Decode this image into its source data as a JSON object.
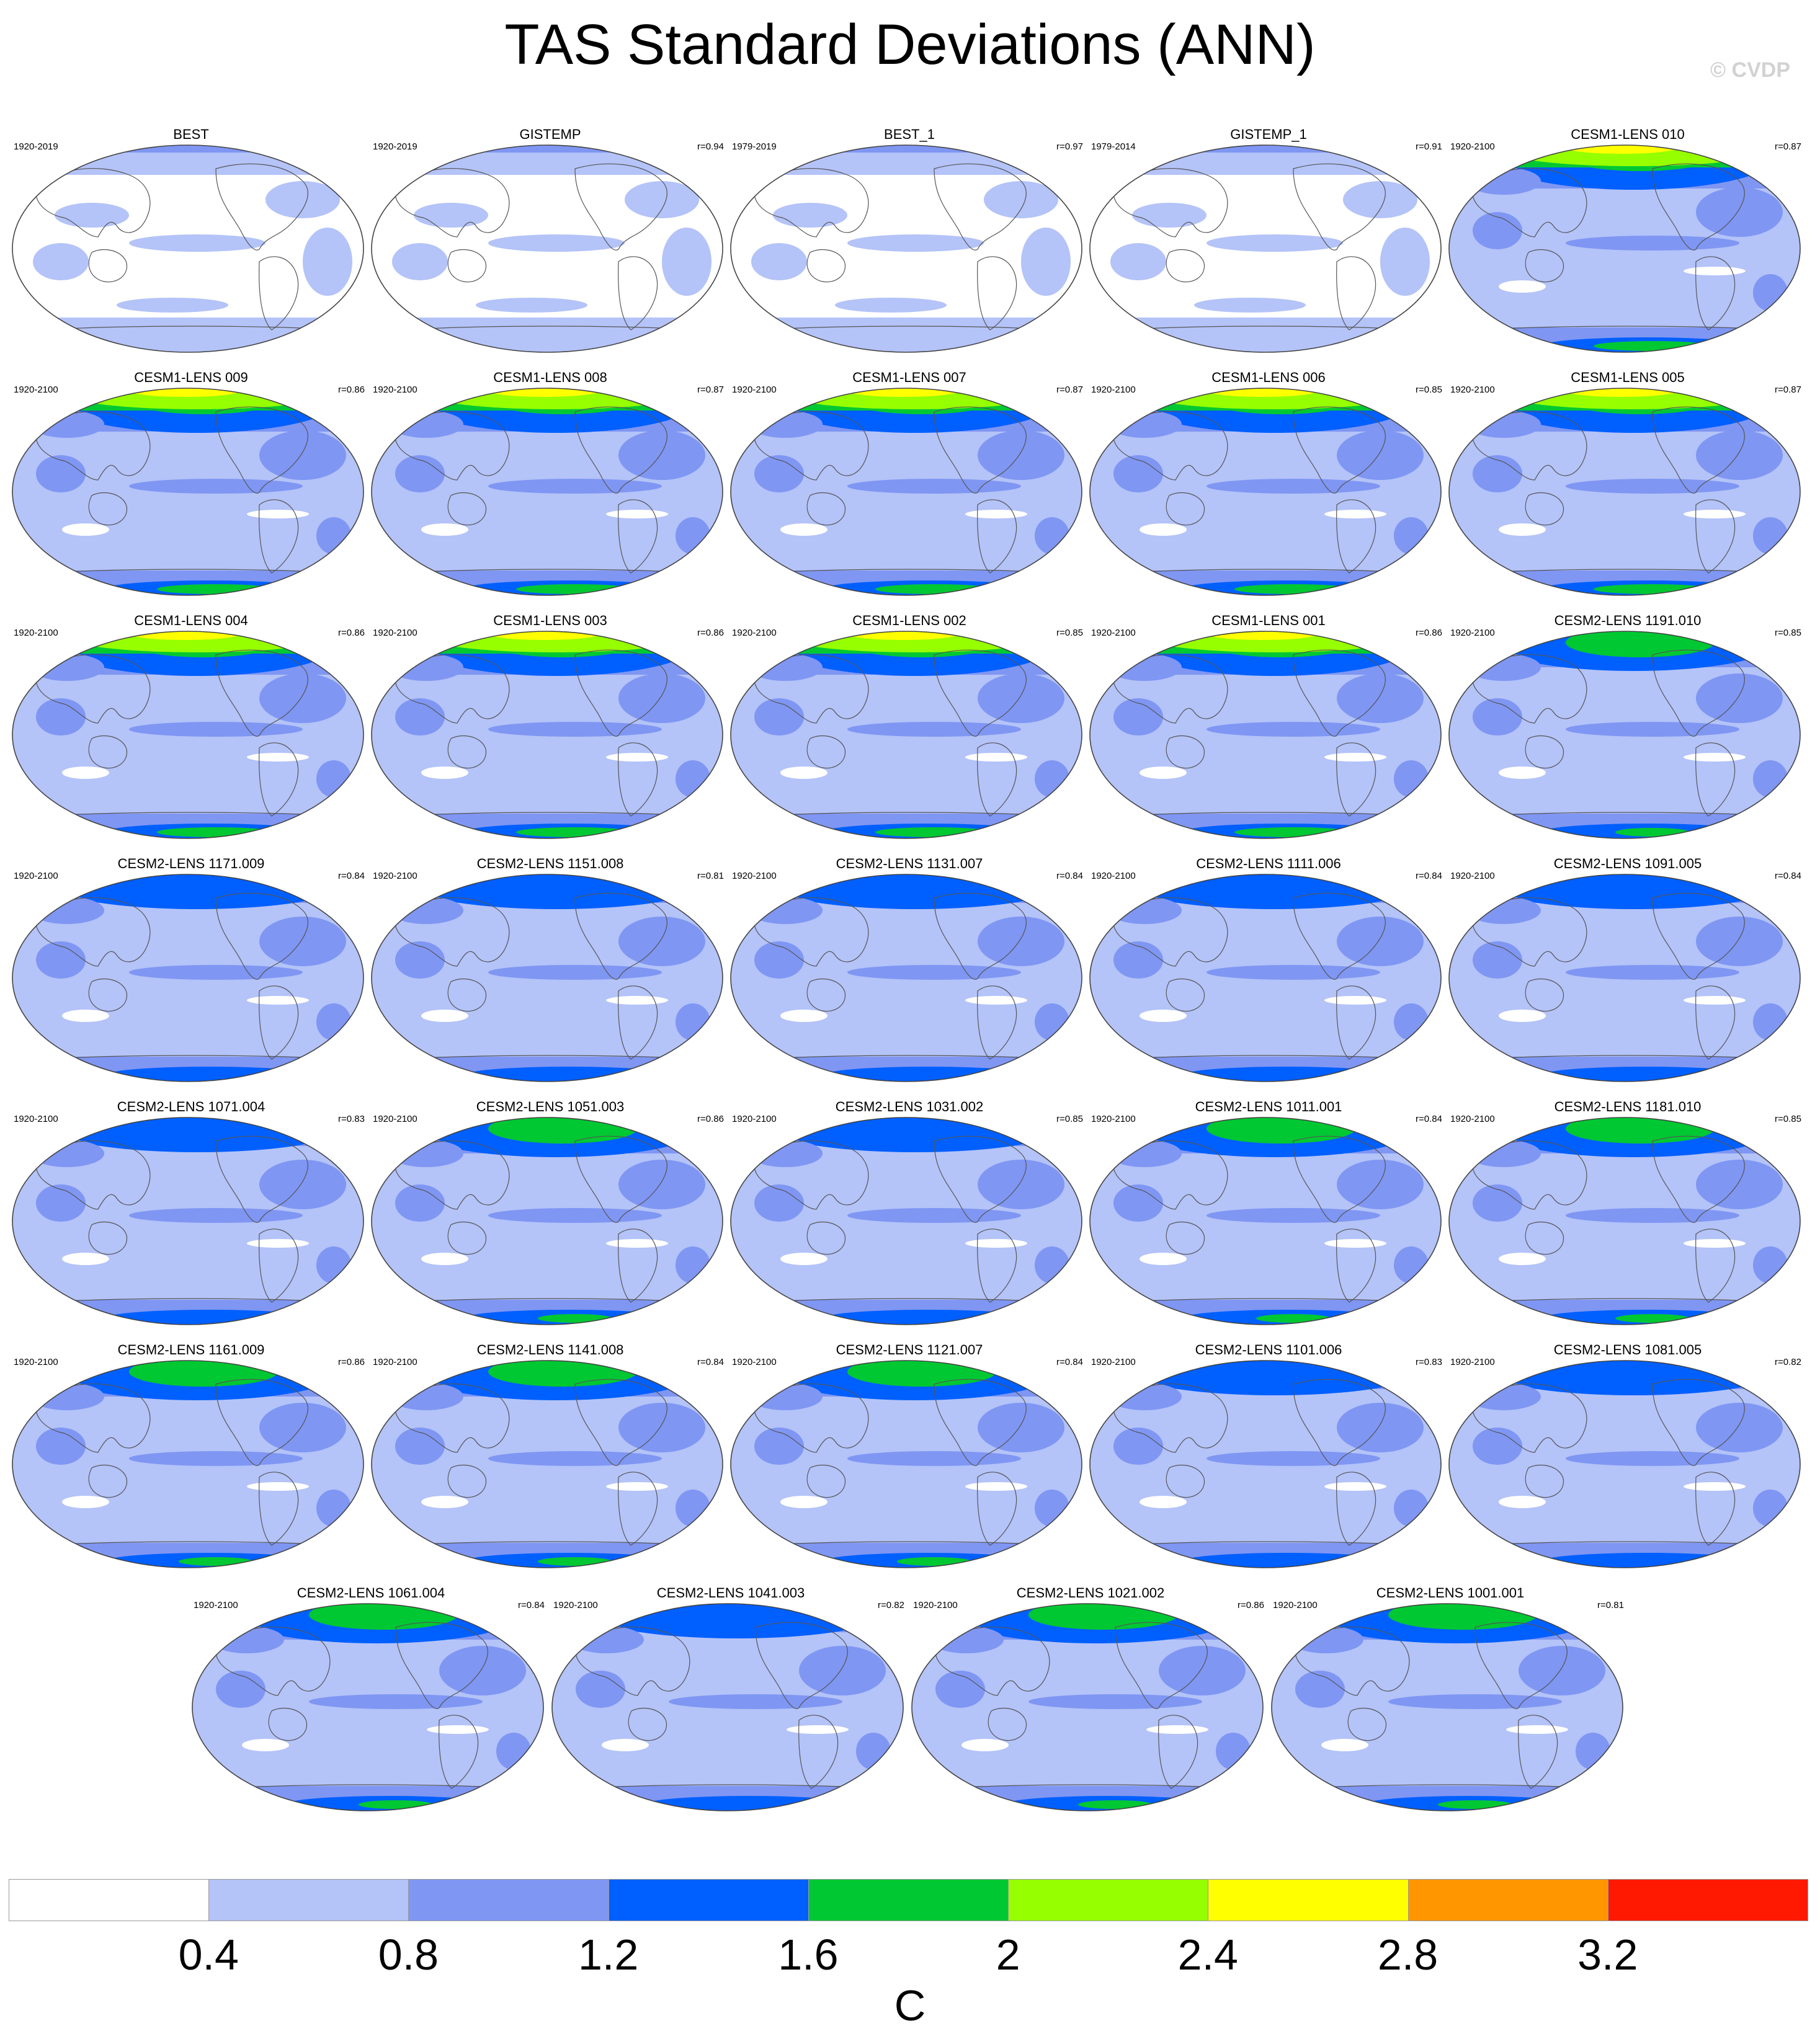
{
  "title": "TAS Standard Deviations (ANN)",
  "watermark": "© CVDP",
  "panels": [
    {
      "name": "BEST",
      "period": "1920-2019",
      "r": "",
      "amp": 0
    },
    {
      "name": "GISTEMP",
      "period": "1920-2019",
      "r": "r=0.94",
      "amp": 0
    },
    {
      "name": "BEST_1",
      "period": "1979-2019",
      "r": "r=0.97",
      "amp": 0
    },
    {
      "name": "GISTEMP_1",
      "period": "1979-2014",
      "r": "r=0.91",
      "amp": 0
    },
    {
      "name": "CESM1-LENS 010",
      "period": "1920-2100",
      "r": "r=0.87",
      "amp": 3
    },
    {
      "name": "CESM1-LENS 009",
      "period": "1920-2100",
      "r": "r=0.86",
      "amp": 3
    },
    {
      "name": "CESM1-LENS 008",
      "period": "1920-2100",
      "r": "r=0.87",
      "amp": 3
    },
    {
      "name": "CESM1-LENS 007",
      "period": "1920-2100",
      "r": "r=0.87",
      "amp": 3
    },
    {
      "name": "CESM1-LENS 006",
      "period": "1920-2100",
      "r": "r=0.85",
      "amp": 3
    },
    {
      "name": "CESM1-LENS 005",
      "period": "1920-2100",
      "r": "r=0.87",
      "amp": 3
    },
    {
      "name": "CESM1-LENS 004",
      "period": "1920-2100",
      "r": "r=0.86",
      "amp": 3
    },
    {
      "name": "CESM1-LENS 003",
      "period": "1920-2100",
      "r": "r=0.86",
      "amp": 3
    },
    {
      "name": "CESM1-LENS 002",
      "period": "1920-2100",
      "r": "r=0.85",
      "amp": 3
    },
    {
      "name": "CESM1-LENS 001",
      "period": "1920-2100",
      "r": "r=0.86",
      "amp": 3
    },
    {
      "name": "CESM2-LENS 1191.010",
      "period": "1920-2100",
      "r": "r=0.85",
      "amp": 2
    },
    {
      "name": "CESM2-LENS 1171.009",
      "period": "1920-2100",
      "r": "r=0.84",
      "amp": 1
    },
    {
      "name": "CESM2-LENS 1151.008",
      "period": "1920-2100",
      "r": "r=0.81",
      "amp": 1
    },
    {
      "name": "CESM2-LENS 1131.007",
      "period": "1920-2100",
      "r": "r=0.84",
      "amp": 1
    },
    {
      "name": "CESM2-LENS 1111.006",
      "period": "1920-2100",
      "r": "r=0.84",
      "amp": 1
    },
    {
      "name": "CESM2-LENS 1091.005",
      "period": "1920-2100",
      "r": "r=0.84",
      "amp": 1
    },
    {
      "name": "CESM2-LENS 1071.004",
      "period": "1920-2100",
      "r": "r=0.83",
      "amp": 1
    },
    {
      "name": "CESM2-LENS 1051.003",
      "period": "1920-2100",
      "r": "r=0.86",
      "amp": 2
    },
    {
      "name": "CESM2-LENS 1031.002",
      "period": "1920-2100",
      "r": "r=0.85",
      "amp": 1
    },
    {
      "name": "CESM2-LENS 1011.001",
      "period": "1920-2100",
      "r": "r=0.84",
      "amp": 2
    },
    {
      "name": "CESM2-LENS 1181.010",
      "period": "1920-2100",
      "r": "r=0.85",
      "amp": 2
    },
    {
      "name": "CESM2-LENS 1161.009",
      "period": "1920-2100",
      "r": "r=0.86",
      "amp": 2
    },
    {
      "name": "CESM2-LENS 1141.008",
      "period": "1920-2100",
      "r": "r=0.84",
      "amp": 2
    },
    {
      "name": "CESM2-LENS 1121.007",
      "period": "1920-2100",
      "r": "r=0.84",
      "amp": 2
    },
    {
      "name": "CESM2-LENS 1101.006",
      "period": "1920-2100",
      "r": "r=0.83",
      "amp": 1
    },
    {
      "name": "CESM2-LENS 1081.005",
      "period": "1920-2100",
      "r": "r=0.82",
      "amp": 1
    },
    {
      "name": "CESM2-LENS 1061.004",
      "period": "1920-2100",
      "r": "r=0.84",
      "amp": 2
    },
    {
      "name": "CESM2-LENS 1041.003",
      "period": "1920-2100",
      "r": "r=0.82",
      "amp": 1
    },
    {
      "name": "CESM2-LENS 1021.002",
      "period": "1920-2100",
      "r": "r=0.86",
      "amp": 2
    },
    {
      "name": "CESM2-LENS 1001.001",
      "period": "1920-2100",
      "r": "r=0.81",
      "amp": 2
    }
  ],
  "colorbar": {
    "colors": [
      "#ffffff",
      "#b4c3f8",
      "#7f96f3",
      "#005fff",
      "#00c832",
      "#96ff00",
      "#ffff00",
      "#ff9600",
      "#ff1900"
    ],
    "ticks": [
      "0.4",
      "0.8",
      "1.2",
      "1.6",
      "2",
      "2.4",
      "2.8",
      "3.2"
    ],
    "unit": "C"
  }
}
